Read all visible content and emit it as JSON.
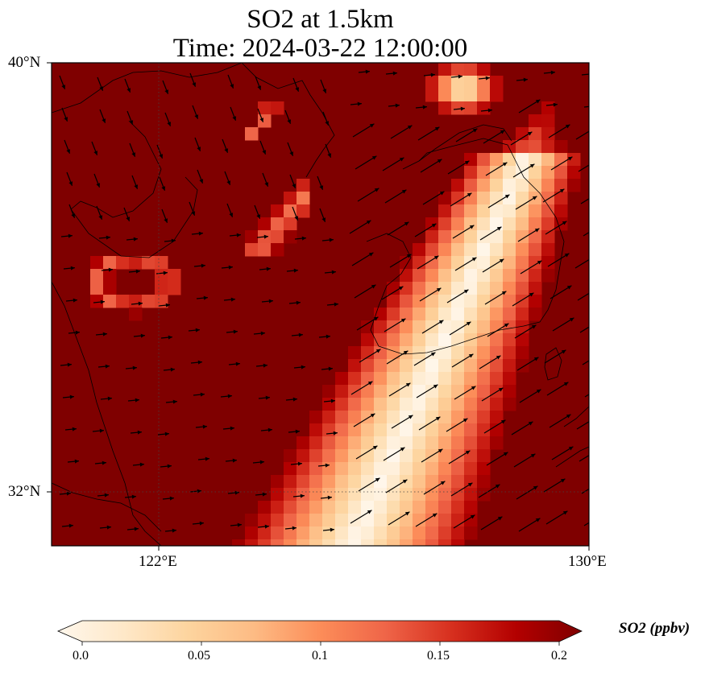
{
  "title": {
    "line1": "SO2 at 1.5km",
    "line2": "Time: 2024-03-22 12:00:00"
  },
  "axes": {
    "lat_labels": [
      "40°N",
      "32°N"
    ],
    "lon_labels": [
      "122°E",
      "130°E"
    ],
    "lon_range": [
      120,
      130
    ],
    "lat_range": [
      31,
      40
    ],
    "gridlines": "dotted"
  },
  "colorbar": {
    "label": "SO2 (ppbv)",
    "ticks": [
      "0.0",
      "0.05",
      "0.1",
      "0.15",
      "0.2"
    ],
    "range": [
      0,
      0.2
    ],
    "colormap": "OrRd_r",
    "extend": "both",
    "stops": [
      "#fff7ec",
      "#fee8c8",
      "#fdd49e",
      "#fdbb84",
      "#fc8d59",
      "#ef6548",
      "#d7301f",
      "#b30000",
      "#7f0000"
    ]
  },
  "colors": {
    "background_field": "#7f0000",
    "coastline": "#000000",
    "wind_vectors": "#000000"
  }
}
